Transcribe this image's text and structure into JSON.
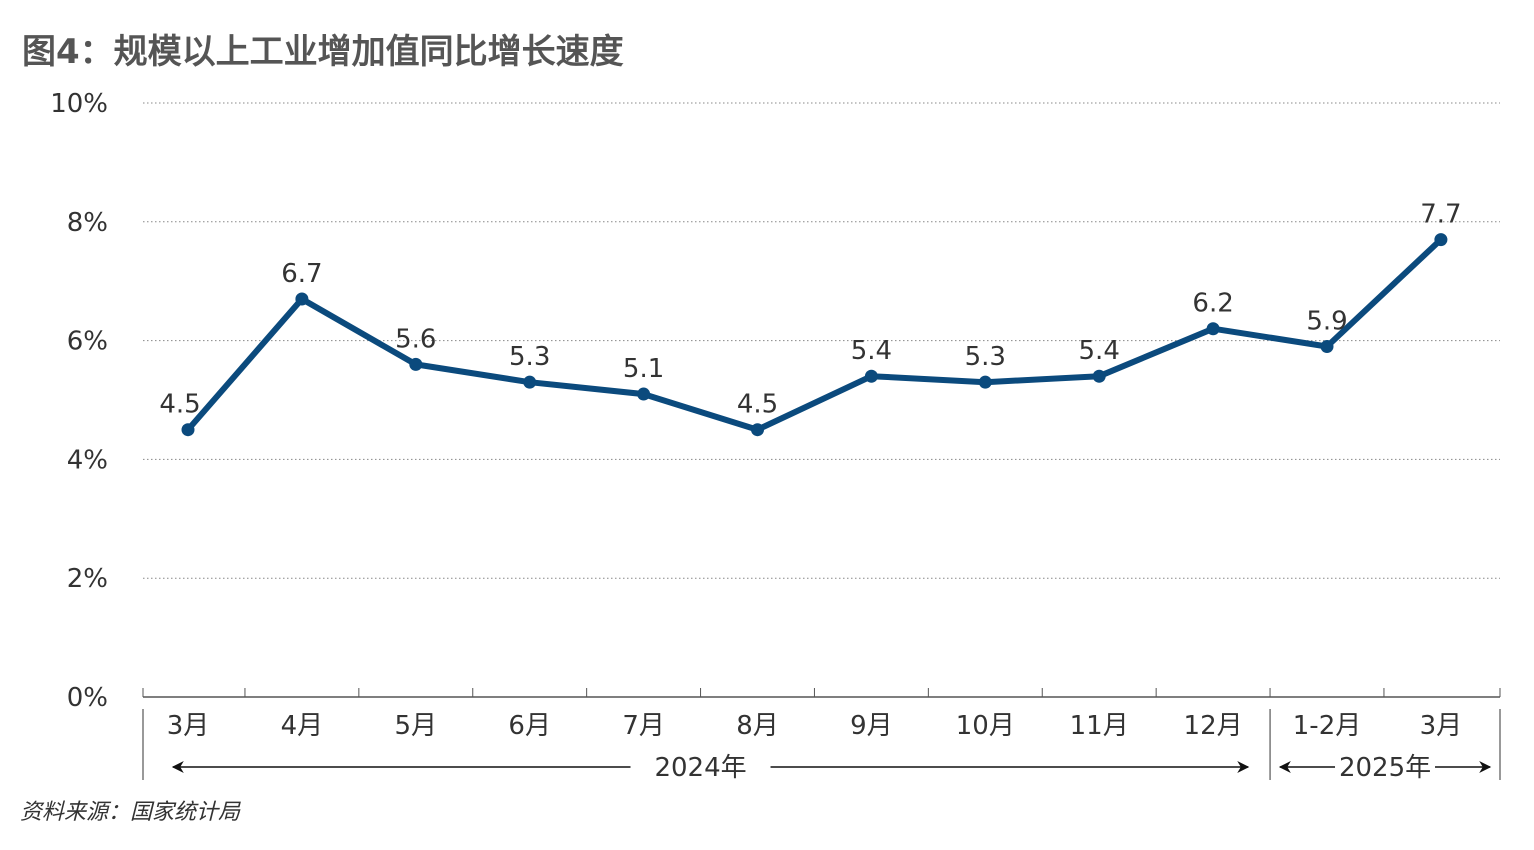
{
  "title": "图4：规模以上工业增加值同比增长速度",
  "source": "资料来源：国家统计局",
  "colors": {
    "line": "#0b4a7d",
    "grid": "#888888",
    "text": "#333333",
    "title": "#555555"
  },
  "chart_data": {
    "type": "line",
    "title": "图4：规模以上工业增加值同比增长速度",
    "xlabel": "",
    "ylabel": "",
    "categories": [
      "3月",
      "4月",
      "5月",
      "6月",
      "7月",
      "8月",
      "9月",
      "10月",
      "11月",
      "12月",
      "1-2月",
      "3月"
    ],
    "series": [
      {
        "values": [
          4.5,
          6.7,
          5.6,
          5.3,
          5.1,
          4.5,
          5.4,
          5.3,
          5.4,
          6.2,
          5.9,
          7.7
        ]
      }
    ],
    "data_labels": [
      "4.5",
      "6.7",
      "5.6",
      "5.3",
      "5.1",
      "4.5",
      "5.4",
      "5.3",
      "5.4",
      "6.2",
      "5.9",
      "7.7"
    ],
    "ylim": [
      0,
      10
    ],
    "yticks": [
      "0%",
      "2%",
      "4%",
      "6%",
      "8%",
      "10%"
    ],
    "grid": true,
    "year_groups": [
      {
        "label": "2024年",
        "start": 0,
        "end": 9
      },
      {
        "label": "2025年",
        "start": 10,
        "end": 11
      }
    ]
  }
}
